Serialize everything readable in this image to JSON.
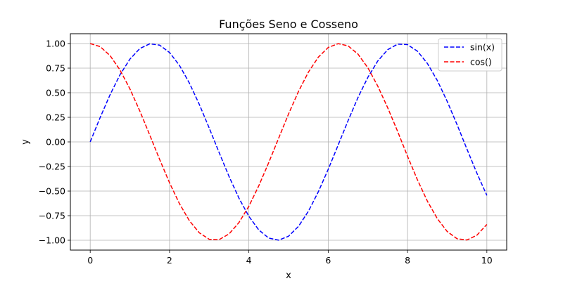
{
  "chart_data": {
    "type": "line",
    "title": "Funções Seno e Cosseno",
    "xlabel": "x",
    "ylabel": "y",
    "xlim": [
      -0.5,
      10.5
    ],
    "ylim": [
      -1.1,
      1.1
    ],
    "xticks": [
      0,
      2,
      4,
      6,
      8,
      10
    ],
    "xtick_labels": [
      "0",
      "2",
      "4",
      "6",
      "8",
      "10"
    ],
    "yticks": [
      1.0,
      0.75,
      0.5,
      0.25,
      0.0,
      -0.25,
      -0.5,
      -0.75,
      -1.0
    ],
    "ytick_labels": [
      "1.00",
      "0.75",
      "0.50",
      "0.25",
      "0.00",
      "−0.25",
      "−0.50",
      "−0.75",
      "−1.00"
    ],
    "grid": true,
    "legend_position": "top-right",
    "x": [
      0.0,
      0.25,
      0.5,
      0.75,
      1.0,
      1.25,
      1.5,
      1.75,
      2.0,
      2.25,
      2.5,
      2.75,
      3.0,
      3.25,
      3.5,
      3.75,
      4.0,
      4.25,
      4.5,
      4.75,
      5.0,
      5.25,
      5.5,
      5.75,
      6.0,
      6.25,
      6.5,
      6.75,
      7.0,
      7.25,
      7.5,
      7.75,
      8.0,
      8.25,
      8.5,
      8.75,
      9.0,
      9.25,
      9.5,
      9.75,
      10.0
    ],
    "series": [
      {
        "name": "sin(x)",
        "color": "#0000ff",
        "style": "dashed",
        "values": [
          0.0,
          0.247,
          0.479,
          0.682,
          0.841,
          0.949,
          0.997,
          0.984,
          0.909,
          0.778,
          0.598,
          0.382,
          0.141,
          -0.108,
          -0.351,
          -0.572,
          -0.757,
          -0.895,
          -0.978,
          -0.999,
          -0.959,
          -0.859,
          -0.706,
          -0.508,
          -0.279,
          -0.033,
          0.215,
          0.451,
          0.657,
          0.823,
          0.938,
          0.994,
          0.989,
          0.922,
          0.798,
          0.625,
          0.412,
          0.174,
          -0.075,
          -0.319,
          -0.544
        ]
      },
      {
        "name": "cos()",
        "color": "#ff0000",
        "style": "dashed",
        "values": [
          1.0,
          0.969,
          0.878,
          0.732,
          0.54,
          0.315,
          0.071,
          -0.178,
          -0.416,
          -0.628,
          -0.801,
          -0.924,
          -0.99,
          -0.994,
          -0.936,
          -0.82,
          -0.654,
          -0.446,
          -0.211,
          0.037,
          0.284,
          0.512,
          0.709,
          0.861,
          0.96,
          0.999,
          0.977,
          0.893,
          0.754,
          0.567,
          0.347,
          0.107,
          -0.146,
          -0.386,
          -0.602,
          -0.78,
          -0.911,
          -0.985,
          -0.997,
          -0.948,
          -0.839
        ]
      }
    ]
  }
}
